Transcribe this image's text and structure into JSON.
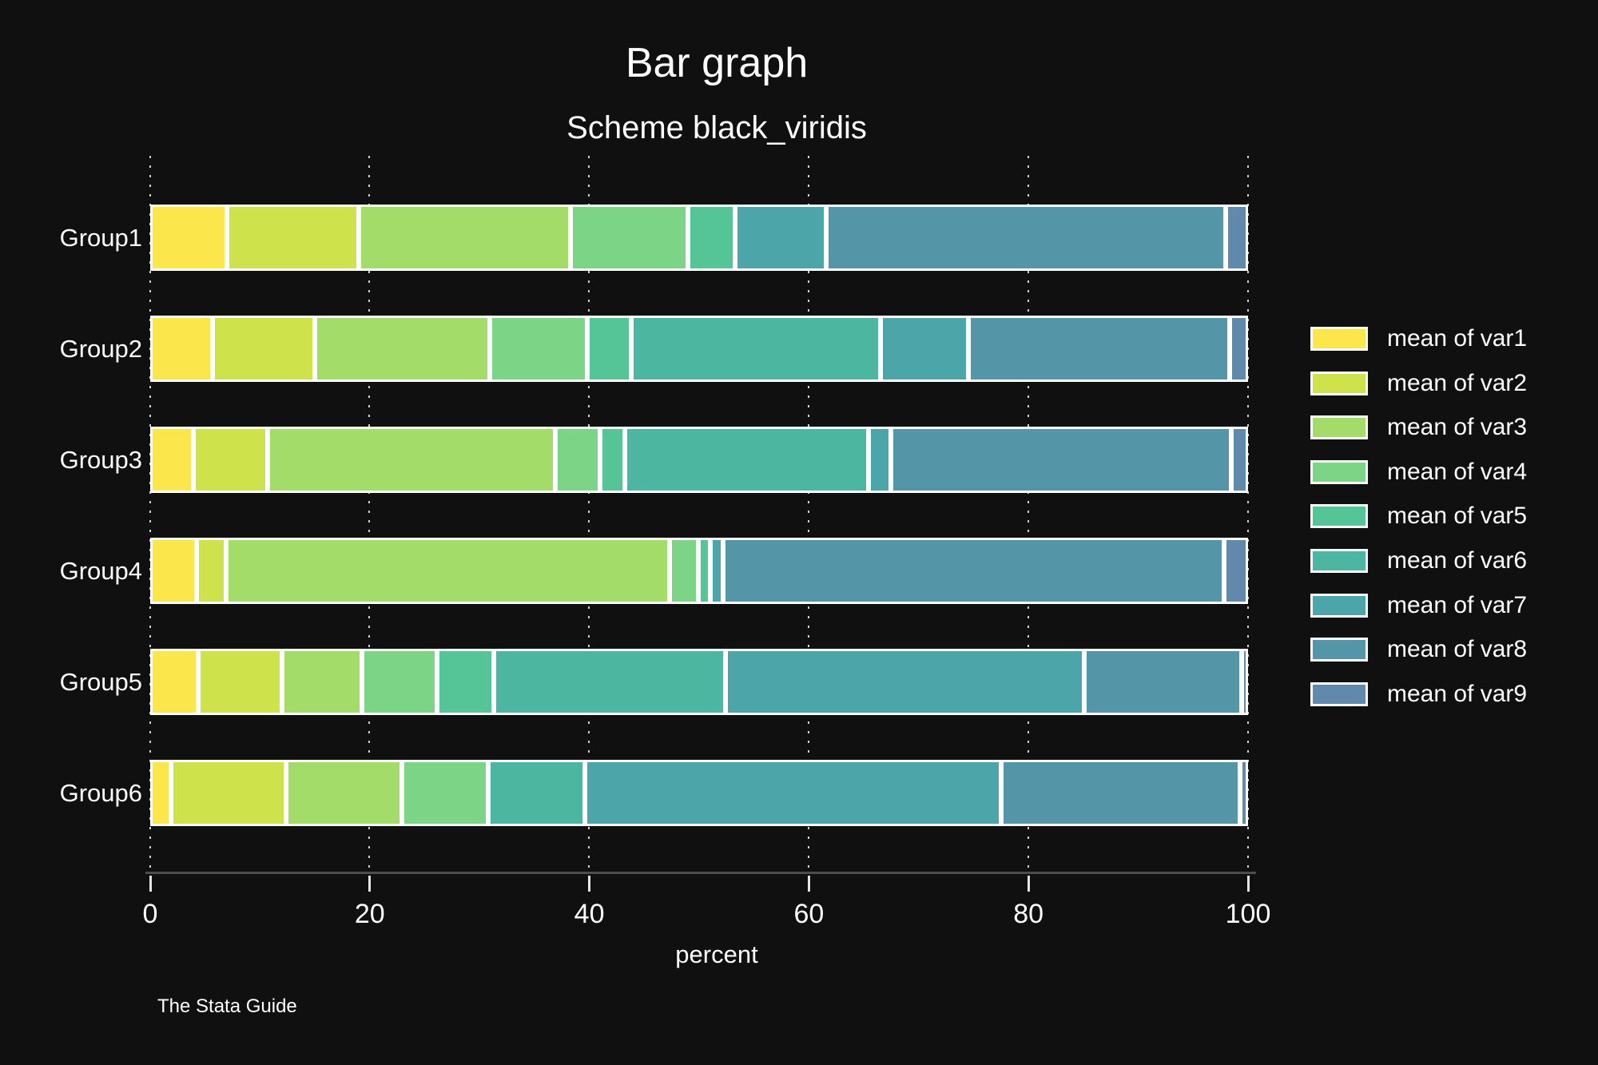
{
  "watermark": "The Stata Guide",
  "colors": {
    "background": "#101010",
    "text": "#ffffff",
    "axis_line": "#4d4d4d",
    "tick": "#e6e6e6",
    "grid_dot": "#f0f0f0",
    "segment_border": "#ffffff"
  },
  "chart_data": {
    "type": "bar",
    "orientation": "horizontal",
    "stacked": true,
    "normalized_percent": true,
    "title": "Bar graph",
    "subtitle": "Scheme black_viridis",
    "xlabel": "percent",
    "xlim": [
      0,
      100
    ],
    "xticks": [
      0,
      20,
      40,
      60,
      80,
      100
    ],
    "grid": "dotted-vertical",
    "legend_position": "right",
    "categories": [
      "Group1",
      "Group2",
      "Group3",
      "Group4",
      "Group5",
      "Group6"
    ],
    "series": [
      {
        "name": "mean of var1",
        "color": "#fbe64c",
        "values": [
          7.0,
          5.7,
          3.9,
          4.2,
          4.4,
          1.9
        ]
      },
      {
        "name": "mean of var2",
        "color": "#cee24c",
        "values": [
          12.0,
          9.3,
          6.8,
          2.7,
          7.6,
          10.5
        ]
      },
      {
        "name": "mean of var3",
        "color": "#a4dc6a",
        "values": [
          19.3,
          15.9,
          26.2,
          40.4,
          7.3,
          10.5
        ]
      },
      {
        "name": "mean of var4",
        "color": "#7cd487",
        "values": [
          10.7,
          8.9,
          4.1,
          2.6,
          6.8,
          7.9
        ]
      },
      {
        "name": "mean of var5",
        "color": "#55c497",
        "values": [
          4.3,
          4.0,
          2.2,
          1.1,
          5.2,
          0
        ]
      },
      {
        "name": "mean of var6",
        "color": "#4cb6a0",
        "values": [
          0,
          22.7,
          22.2,
          0,
          21.1,
          8.8
        ]
      },
      {
        "name": "mean of var7",
        "color": "#4ca5a8",
        "values": [
          8.3,
          8.0,
          2.1,
          1.2,
          32.7,
          37.9
        ]
      },
      {
        "name": "mean of var8",
        "color": "#5595a8",
        "values": [
          36.4,
          23.8,
          31.0,
          45.6,
          14.3,
          21.8
        ]
      },
      {
        "name": "mean of var9",
        "color": "#6189ac",
        "values": [
          2.0,
          1.7,
          1.5,
          2.2,
          0.6,
          0.7
        ]
      }
    ]
  }
}
